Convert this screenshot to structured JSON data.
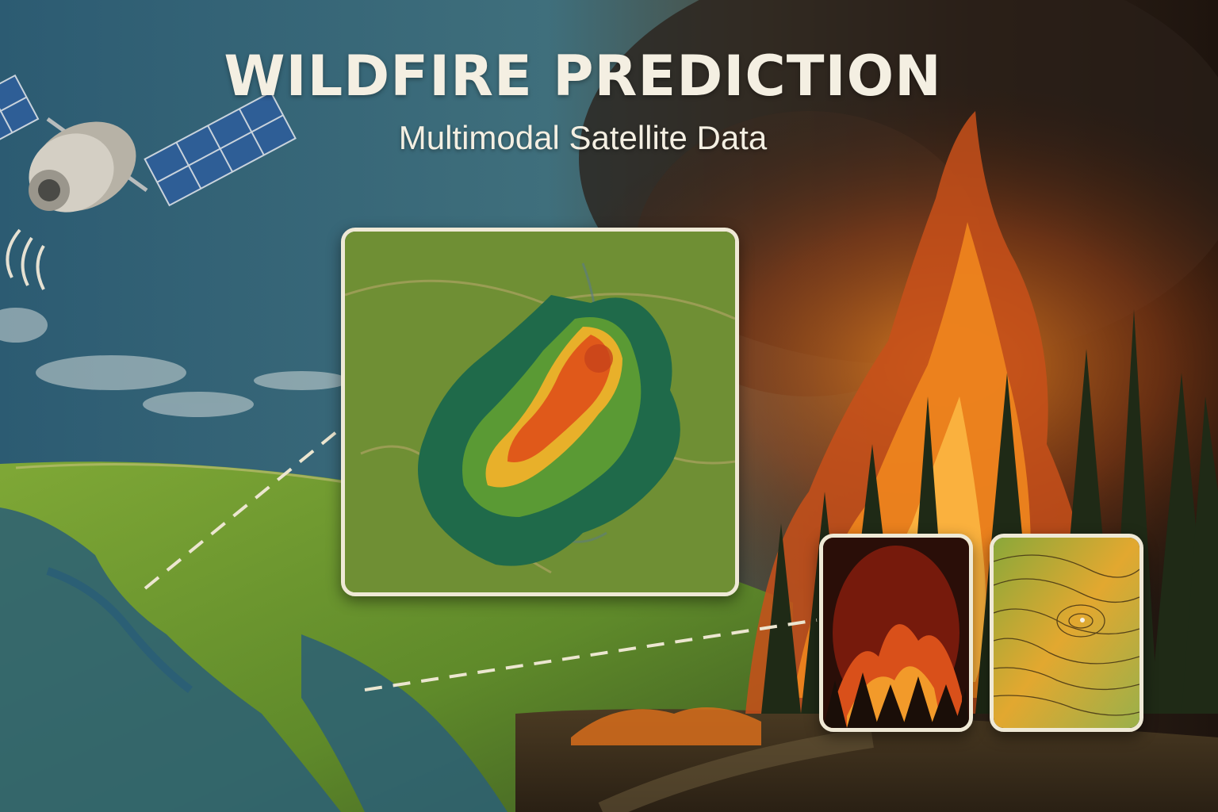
{
  "header": {
    "title": "WILDFIRE PREDICTION",
    "subtitle": "Multimodal Satellite Data"
  },
  "panels": {
    "main_map": "fire-risk-heatmap",
    "thumbnail_1": "fire-imagery",
    "thumbnail_2": "topographic-map"
  },
  "colors": {
    "sky": "#3a6a80",
    "vegetation": "#6f9a2e",
    "water": "#2b5f75",
    "fire_hot": "#e0591a",
    "fire_warm": "#f0a020",
    "panel_border": "#efe9d6",
    "title_text": "#f4efe2"
  }
}
